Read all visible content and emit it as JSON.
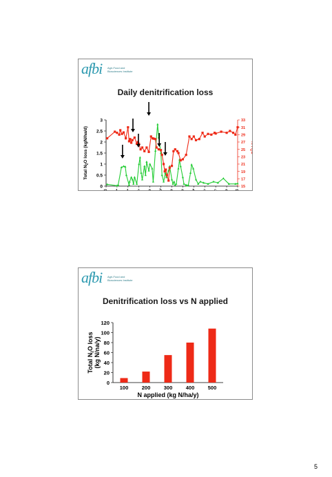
{
  "page": {
    "number": "5"
  },
  "logo": {
    "mark": "afbi",
    "subtitle_line1": "Agri-Food and",
    "subtitle_line2": "Biosciences Institute"
  },
  "slides": [
    {
      "title": "Daily denitrification loss"
    },
    {
      "title": "Denitrification loss vs N applied"
    }
  ],
  "chart_data": [
    {
      "type": "line",
      "title": "Daily denitrification loss",
      "ylabel": "Total N2O loss (kgN/ha/d)",
      "y2label": "% H2O",
      "ylim": [
        0,
        3
      ],
      "y2lim": [
        15,
        33
      ],
      "yticks": [
        "0",
        "0.5",
        "1",
        "1.5",
        "2",
        "2.5",
        "3"
      ],
      "y2ticks": [
        "15",
        "17",
        "19",
        "21",
        "23",
        "25",
        "27",
        "29",
        "31",
        "33"
      ],
      "categories": [
        "Feb",
        "Mar",
        "Apr",
        "May",
        "Jun",
        "Jul",
        "Aug",
        "Sep",
        "Oct",
        "Nov",
        "Dec",
        "Jan",
        "Feb"
      ],
      "colors": {
        "n2o": "#22cc33",
        "h2o": "#ee2a17"
      },
      "series": [
        {
          "key": "n2o",
          "axis": "left",
          "x": [
            0.1,
            1.0,
            1.1,
            1.4,
            1.6,
            1.75,
            1.85,
            2.1,
            2.15,
            2.3,
            2.4,
            2.5,
            2.6,
            2.8,
            3.0,
            3.1,
            3.2,
            3.3,
            3.5,
            3.6,
            3.7,
            3.9,
            4.0,
            4.2,
            4.3,
            4.5,
            4.7,
            4.8,
            5.0,
            5.1,
            5.25,
            5.4,
            5.5,
            5.7,
            5.8,
            6.0,
            6.1,
            6.2,
            6.3,
            6.4,
            6.6,
            6.7,
            6.8,
            7.0,
            7.1,
            7.3,
            7.4,
            7.5,
            7.7,
            7.8,
            7.95,
            8.2,
            8.4,
            8.6,
            8.9,
            9.3,
            9.8,
            10.2,
            10.7,
            11.2,
            11.8,
            12.0
          ],
          "values": [
            0.08,
            0.02,
            0.05,
            0.85,
            0.9,
            0.88,
            0.5,
            0.05,
            0.2,
            0.4,
            0.3,
            0.1,
            0.4,
            0.1,
            1.0,
            1.3,
            0.6,
            0.3,
            0.9,
            0.5,
            1.1,
            0.7,
            1.0,
            0.8,
            0.2,
            1.6,
            2.8,
            2.2,
            1.5,
            0.5,
            0.2,
            0.6,
            0.4,
            0.7,
            0.9,
            0.3,
            0.1,
            0.2,
            0.05,
            0.1,
            0.8,
            1.2,
            0.9,
            0.4,
            0.1,
            0.05,
            0.02,
            0.05,
            0.6,
            0.97,
            0.8,
            0.3,
            0.1,
            0.2,
            0.15,
            0.1,
            0.2,
            0.15,
            0.35,
            0.1,
            0.1,
            0.12
          ]
        },
        {
          "key": "h2o",
          "axis": "right",
          "x": [
            0.1,
            0.8,
            1.0,
            1.2,
            1.3,
            1.45,
            1.6,
            1.8,
            2.0,
            2.1,
            2.2,
            2.3,
            2.4,
            2.6,
            2.8,
            2.9,
            3.0,
            3.15,
            3.3,
            3.5,
            3.7,
            3.9,
            4.1,
            4.25,
            4.35,
            4.5,
            4.6,
            4.8,
            5.0,
            5.1,
            5.25,
            5.35,
            5.45,
            5.55,
            5.7,
            5.8,
            6.0,
            6.15,
            6.3,
            6.5,
            6.6,
            6.8,
            7.0,
            7.3,
            7.6,
            7.8,
            8.0,
            8.2,
            8.5,
            8.8,
            9.0,
            9.3,
            9.6,
            9.9,
            10.0,
            10.5,
            11.0,
            11.3,
            11.6,
            11.8,
            12.0
          ],
          "values": [
            28.0,
            29.8,
            29.5,
            29.0,
            30.2,
            29.2,
            29.6,
            28.0,
            31.0,
            27.2,
            27.8,
            26.8,
            27.5,
            28.2,
            26.5,
            27.0,
            26.5,
            25.0,
            25.5,
            24.5,
            25.5,
            24.3,
            28.5,
            28.0,
            27.9,
            27.8,
            25.5,
            25.0,
            24.8,
            23.5,
            21.0,
            19.0,
            19.5,
            18.0,
            16.5,
            20.0,
            20.5,
            24.5,
            25.0,
            24.5,
            24.0,
            22.0,
            22.3,
            23.5,
            28.5,
            27.8,
            28.5,
            27.5,
            27.8,
            29.5,
            28.5,
            29.2,
            29.0,
            29.5,
            29.3,
            29.8,
            29.5,
            30.0,
            29.5,
            29.0,
            31.0
          ]
        }
      ],
      "arrows_at_x": [
        1.5,
        2.45,
        2.95,
        3.9,
        4.85,
        5.4
      ]
    },
    {
      "type": "bar",
      "title": "Denitrification loss vs N applied",
      "xlabel": "N applied (kg N/ha/y)",
      "ylabel_line1": "Total N2O loss",
      "ylabel_line2": "(kg N/na/y)",
      "categories": [
        "100",
        "200",
        "300",
        "400",
        "500"
      ],
      "values": [
        9,
        22,
        55,
        80,
        108
      ],
      "ylim": [
        0,
        120
      ],
      "yticks": [
        "0",
        "20",
        "40",
        "60",
        "80",
        "100",
        "120"
      ],
      "bar_color": "#ee2a17"
    }
  ]
}
